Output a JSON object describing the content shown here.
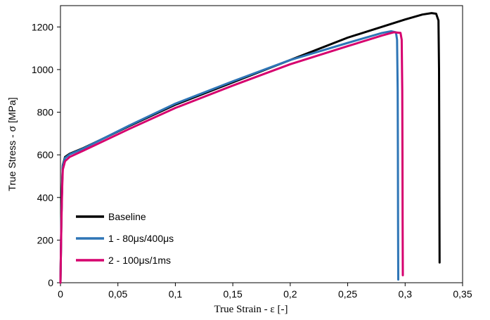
{
  "chart_data": {
    "type": "line",
    "xlabel": "True Strain - ε [-]",
    "ylabel": "True Stress - σ [MPa]",
    "xlim": [
      0,
      0.35
    ],
    "ylim": [
      0,
      1300
    ],
    "xticks": [
      0,
      0.05,
      0.1,
      0.15,
      0.2,
      0.25,
      0.3,
      0.35
    ],
    "xtick_labels": [
      "0",
      "0,05",
      "0,1",
      "0,15",
      "0,2",
      "0,25",
      "0,3",
      "0,35"
    ],
    "yticks": [
      0,
      200,
      400,
      600,
      800,
      1000,
      1200
    ],
    "ytick_labels": [
      "0",
      "200",
      "400",
      "600",
      "800",
      "1000",
      "1200"
    ],
    "grid": false,
    "legend_position": "bottom-left",
    "series": [
      {
        "name": "Baseline",
        "color": "#000000",
        "points": [
          [
            0,
            0
          ],
          [
            0.0008,
            300
          ],
          [
            0.0015,
            480
          ],
          [
            0.002,
            550
          ],
          [
            0.004,
            590
          ],
          [
            0.008,
            605
          ],
          [
            0.02,
            632
          ],
          [
            0.06,
            735
          ],
          [
            0.1,
            835
          ],
          [
            0.15,
            940
          ],
          [
            0.2,
            1045
          ],
          [
            0.25,
            1150
          ],
          [
            0.3,
            1235
          ],
          [
            0.315,
            1258
          ],
          [
            0.323,
            1265
          ],
          [
            0.327,
            1262
          ],
          [
            0.329,
            1230
          ],
          [
            0.3295,
            1000
          ],
          [
            0.3297,
            700
          ],
          [
            0.3298,
            400
          ],
          [
            0.33,
            95
          ]
        ]
      },
      {
        "name": "1 - 80μs/400μs",
        "color": "#2e75b6",
        "points": [
          [
            0,
            0
          ],
          [
            0.0008,
            300
          ],
          [
            0.0015,
            470
          ],
          [
            0.002,
            545
          ],
          [
            0.004,
            585
          ],
          [
            0.008,
            602
          ],
          [
            0.02,
            630
          ],
          [
            0.06,
            738
          ],
          [
            0.1,
            840
          ],
          [
            0.15,
            945
          ],
          [
            0.2,
            1045
          ],
          [
            0.25,
            1125
          ],
          [
            0.28,
            1172
          ],
          [
            0.288,
            1180
          ],
          [
            0.292,
            1175
          ],
          [
            0.293,
            1140
          ],
          [
            0.2935,
            900
          ],
          [
            0.2937,
            600
          ],
          [
            0.2938,
            300
          ],
          [
            0.294,
            15
          ]
        ]
      },
      {
        "name": "2 - 100μs/1ms",
        "color": "#d6006e",
        "points": [
          [
            0,
            0
          ],
          [
            0.0008,
            280
          ],
          [
            0.0015,
            450
          ],
          [
            0.002,
            530
          ],
          [
            0.004,
            570
          ],
          [
            0.008,
            590
          ],
          [
            0.02,
            620
          ],
          [
            0.06,
            722
          ],
          [
            0.1,
            820
          ],
          [
            0.15,
            925
          ],
          [
            0.2,
            1025
          ],
          [
            0.25,
            1110
          ],
          [
            0.28,
            1160
          ],
          [
            0.29,
            1175
          ],
          [
            0.296,
            1172
          ],
          [
            0.297,
            1140
          ],
          [
            0.2975,
            900
          ],
          [
            0.2977,
            600
          ],
          [
            0.2978,
            300
          ],
          [
            0.298,
            35
          ]
        ]
      }
    ]
  }
}
